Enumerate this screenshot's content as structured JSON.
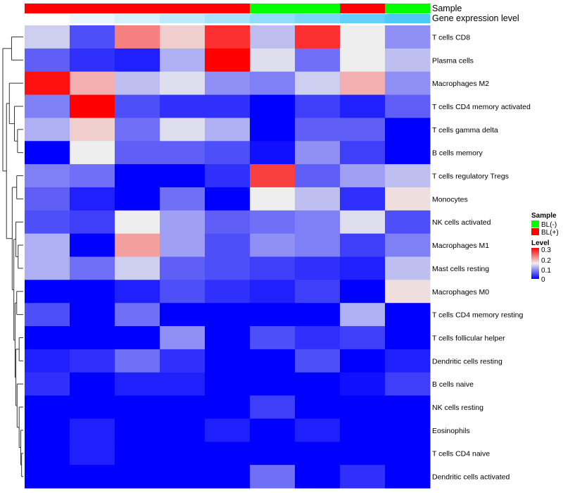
{
  "chart_data": {
    "type": "heatmap",
    "rows": [
      "T cells CD8",
      "Plasma cells",
      "Macrophages M2",
      "T cells CD4 memory activated",
      "T cells gamma delta",
      "B cells memory",
      "T cells regulatory  Tregs",
      "Monocytes",
      "NK cells activated",
      "Macrophages M1",
      "Mast cells resting",
      "Macrophages M0",
      "T cells CD4 memory resting",
      "T cells follicular helper",
      "Dendritic cells resting",
      "B cells naive",
      "NK cells resting",
      "Eosinophils",
      "T cells CD4 naive",
      "Dendritic cells activated"
    ],
    "values": [
      [
        0.13,
        0.05,
        0.22,
        0.17,
        0.27,
        0.12,
        0.27,
        0.15,
        0.09
      ],
      [
        0.06,
        0.03,
        0.02,
        0.11,
        0.3,
        0.14,
        0.07,
        0.15,
        0.12
      ],
      [
        0.29,
        0.19,
        0.12,
        0.14,
        0.09,
        0.08,
        0.13,
        0.19,
        0.09
      ],
      [
        0.08,
        0.3,
        0.05,
        0.03,
        0.03,
        0.0,
        0.04,
        0.02,
        0.06
      ],
      [
        0.11,
        0.17,
        0.07,
        0.14,
        0.11,
        0.0,
        0.06,
        0.06,
        0.0
      ],
      [
        0.0,
        0.15,
        0.06,
        0.06,
        0.05,
        0.01,
        0.09,
        0.04,
        0.0
      ],
      [
        0.08,
        0.07,
        0.0,
        0.0,
        0.03,
        0.26,
        0.06,
        0.1,
        0.12
      ],
      [
        0.06,
        0.02,
        0.0,
        0.07,
        0.0,
        0.15,
        0.12,
        0.03,
        0.16
      ],
      [
        0.05,
        0.04,
        0.15,
        0.1,
        0.06,
        0.07,
        0.08,
        0.14,
        0.05
      ],
      [
        0.11,
        0.0,
        0.2,
        0.1,
        0.05,
        0.09,
        0.08,
        0.04,
        0.08
      ],
      [
        0.11,
        0.07,
        0.13,
        0.06,
        0.05,
        0.04,
        0.03,
        0.02,
        0.12
      ],
      [
        0.0,
        0.0,
        0.02,
        0.05,
        0.03,
        0.02,
        0.04,
        0.0,
        0.16
      ],
      [
        0.05,
        0.0,
        0.07,
        0.0,
        0.0,
        0.0,
        0.0,
        0.11,
        0.0
      ],
      [
        0.0,
        0.0,
        0.0,
        0.09,
        0.0,
        0.05,
        0.03,
        0.04,
        0.0
      ],
      [
        0.02,
        0.03,
        0.07,
        0.03,
        0.0,
        0.0,
        0.05,
        0.0,
        0.02
      ],
      [
        0.03,
        0.0,
        0.02,
        0.02,
        0.0,
        0.0,
        0.0,
        0.01,
        0.04
      ],
      [
        0.0,
        0.0,
        0.0,
        0.0,
        0.0,
        0.04,
        0.0,
        0.0,
        0.0
      ],
      [
        0.0,
        0.02,
        0.0,
        0.0,
        0.02,
        0.0,
        0.02,
        0.0,
        0.0
      ],
      [
        0.0,
        0.02,
        0.0,
        0.0,
        0.0,
        0.0,
        0.0,
        0.0,
        0.0
      ],
      [
        0.0,
        0.0,
        0.0,
        0.0,
        0.0,
        0.07,
        0.0,
        0.03,
        0.0
      ]
    ],
    "column_annotations": {
      "sample": [
        "BL(+)",
        "BL(+)",
        "BL(+)",
        "BL(+)",
        "BL(+)",
        "BL(-)",
        "BL(-)",
        "BL(+)",
        "BL(-)"
      ],
      "gene_expression_level": [
        0,
        1,
        2,
        3,
        4,
        5,
        6,
        7,
        8
      ]
    },
    "annotation_labels": {
      "sample": "Sample",
      "gene_expression_level": "Gene expression level"
    },
    "row_dendrogram": {
      "h": 1.0,
      "c": [
        {
          "h": 0.57,
          "c": [
            0,
            1
          ]
        },
        {
          "h": 0.82,
          "c": [
            {
              "h": 0.68,
              "c": [
                2,
                {
                  "h": 0.43,
                  "c": [
                    3,
                    {
                      "h": 0.28,
                      "c": [
                        4,
                        5
                      ]
                    }
                  ]
                }
              ]
            },
            {
              "h": 0.54,
              "c": [
                {
                  "h": 0.32,
                  "c": [
                    6,
                    7
                  ]
                },
                {
                  "h": 0.46,
                  "c": [
                    {
                      "h": 0.36,
                      "c": [
                        8,
                        {
                          "h": 0.25,
                          "c": [
                            9,
                            10
                          ]
                        }
                      ]
                    },
                    {
                      "h": 0.4,
                      "c": [
                        {
                          "h": 0.32,
                          "c": [
                            11,
                            12
                          ]
                        },
                        {
                          "h": 0.36,
                          "c": [
                            {
                              "h": 0.2,
                              "c": [
                                13,
                                14
                              ]
                            },
                            {
                              "h": 0.3,
                              "c": [
                                15,
                                {
                                  "h": 0.2,
                                  "c": [
                                    16,
                                    {
                                      "h": 0.12,
                                      "c": [
                                        17,
                                        {
                                          "h": 0.08,
                                          "c": [
                                            18,
                                            19
                                          ]
                                        }
                                      ]
                                    }
                                  ]
                                }
                              ]
                            }
                          ]
                        }
                      ]
                    }
                  ]
                }
              ]
            }
          ]
        }
      ]
    },
    "legend": {
      "sample_title": "Sample",
      "sample_entries": [
        {
          "label": "BL(-)",
          "color": "#00ff00"
        },
        {
          "label": "BL(+)",
          "color": "#ff0000"
        }
      ],
      "level_title": "Level",
      "level_ticks": [
        "0.3",
        "0.2",
        "0.1",
        "0"
      ],
      "level_range": [
        0,
        0.3
      ]
    },
    "colors": {
      "low": "#0000ff",
      "mid": "#eeeeee",
      "high": "#ff0000",
      "gene_low": "#ffffff",
      "gene_high": "#4dc9f6"
    }
  }
}
